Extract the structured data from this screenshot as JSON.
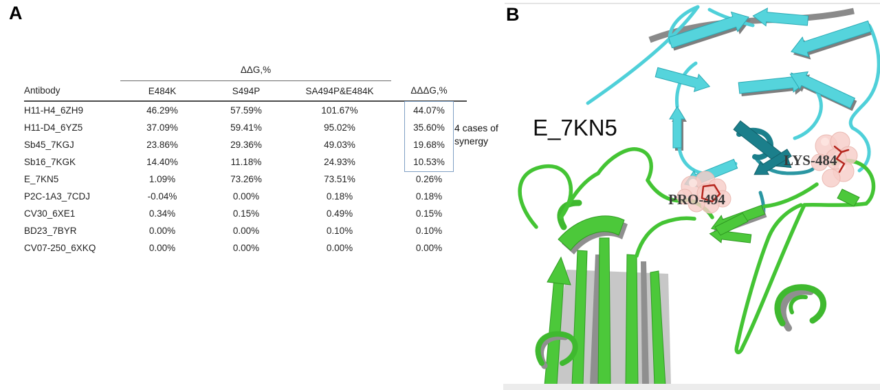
{
  "figure": {
    "panel_a_label": "A",
    "panel_b_label": "B"
  },
  "panel_a": {
    "table": {
      "group_header": "ΔΔG,%",
      "columns": [
        "Antibody",
        "E484K",
        "S494P",
        "SA494P&E484K",
        "ΔΔΔG,%"
      ],
      "rows": [
        [
          "H11-H4_6ZH9",
          "46.29%",
          "57.59%",
          "101.67%",
          "44.07%"
        ],
        [
          "H11-D4_6YZ5",
          "37.09%",
          "59.41%",
          "95.02%",
          "35.60%"
        ],
        [
          "Sb45_7KGJ",
          "23.86%",
          "29.36%",
          "49.03%",
          "19.68%"
        ],
        [
          "Sb16_7KGK",
          "14.40%",
          "11.18%",
          "24.93%",
          "10.53%"
        ],
        [
          "E_7KN5",
          "1.09%",
          "73.26%",
          "73.51%",
          "0.26%"
        ],
        [
          "P2C-1A3_7CDJ",
          "-0.04%",
          "0.00%",
          "0.18%",
          "0.18%"
        ],
        [
          "CV30_6XE1",
          "0.34%",
          "0.15%",
          "0.49%",
          "0.15%"
        ],
        [
          "BD23_7BYR",
          "0.00%",
          "0.00%",
          "0.10%",
          "0.10%"
        ],
        [
          "CV07-250_6XKQ",
          "0.00%",
          "0.00%",
          "0.00%",
          "0.00%"
        ]
      ],
      "annotation": "4 cases of synergy",
      "highlight": {
        "applies_to_first_n_rows": 4,
        "column": "ΔΔΔG,%",
        "box_color": "#7f9fc4"
      }
    }
  },
  "panel_b": {
    "structure_label": "E_7KN5",
    "residues": [
      "LYS-484",
      "PRO-494"
    ],
    "colors": {
      "antibody_cartoon": "#55d4dc",
      "antibody_dark": "#1b7f8b",
      "rbd_cartoon": "#4cc83a",
      "cartoon_shadow": "#8a8a8a",
      "residue_spheres": "#f6cdc8",
      "residue_sticks": "#b5251d"
    }
  }
}
